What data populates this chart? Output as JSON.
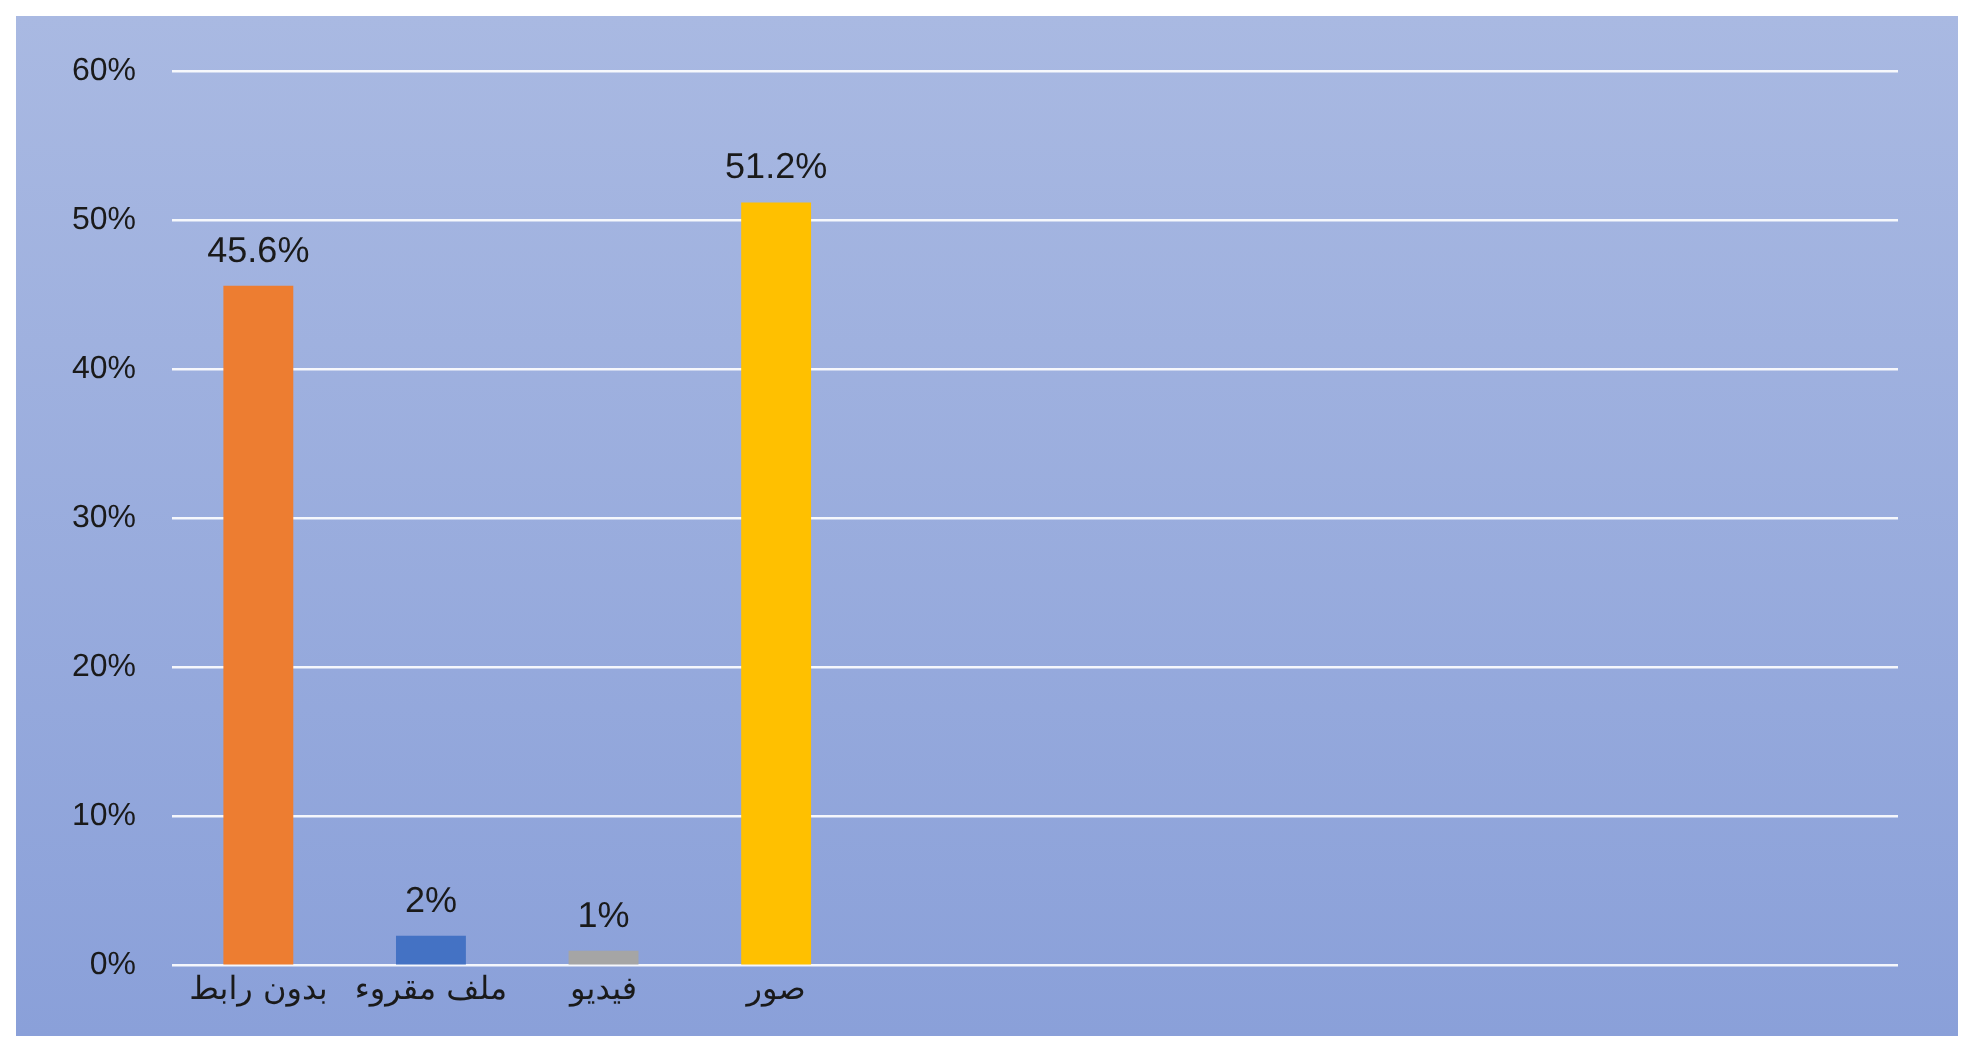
{
  "chart_data": {
    "type": "bar",
    "categories": [
      "بدون رابط",
      "ملف مقروء",
      "فيديو",
      "صور",
      null,
      null,
      null,
      null,
      null,
      null
    ],
    "values": [
      45.6,
      2,
      1,
      51.2,
      null,
      null,
      null,
      null,
      null,
      null
    ],
    "colors": [
      "#ed7d31",
      "#4472c4",
      "#a5a5a5",
      "#ffc000",
      null,
      null,
      null,
      null,
      null,
      null
    ],
    "value_labels": [
      "45.6%",
      "2%",
      "1%",
      "51.2%",
      null,
      null,
      null,
      null,
      null,
      null
    ],
    "ylim": [
      0,
      60
    ],
    "yticks": [
      {
        "value": 0,
        "label": "0%"
      },
      {
        "value": 10,
        "label": "10%"
      },
      {
        "value": 20,
        "label": "20%"
      },
      {
        "value": 30,
        "label": "30%"
      },
      {
        "value": 40,
        "label": "40%"
      },
      {
        "value": 50,
        "label": "50%"
      },
      {
        "value": 60,
        "label": "60%"
      }
    ],
    "grid": "y"
  }
}
